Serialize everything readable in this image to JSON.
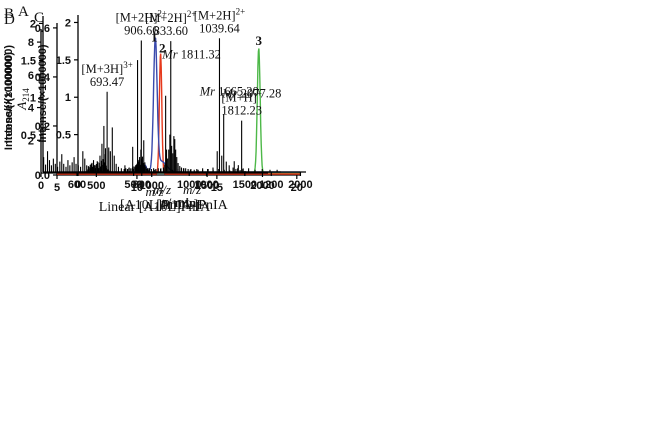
{
  "figure": {
    "background": "#ffffff",
    "axis_color": "#000000"
  },
  "chart_data": [
    {
      "panel": "A",
      "type": "line",
      "description": "RP-HPLC chromatogram with three labeled peaks",
      "xlabel": {
        "italic": "t",
        "base": " / min"
      },
      "ylabel": {
        "italic": "A",
        "sub": "214"
      },
      "xlim": [
        5,
        20.2
      ],
      "ylim": [
        0,
        0.62
      ],
      "xticks": {
        "values": [
          5,
          10,
          15,
          20
        ],
        "labels": [
          "5",
          "10",
          "15",
          "20"
        ]
      },
      "yticks": {
        "values": [
          0,
          0.2,
          0.4,
          0.6
        ],
        "labels": [
          "0.0",
          "0.2",
          "0.4",
          "0.6"
        ]
      },
      "grid": false,
      "series": [
        {
          "name": "trace-3-green",
          "color": "#4db848",
          "baseline": 0.008,
          "peaks": [
            [
              17.62,
              0.51,
              0.09
            ]
          ]
        },
        {
          "name": "trace-2-red",
          "color": "#e6391c",
          "baseline": 0.004,
          "peaks": [
            [
              11.48,
              0.495,
              0.075
            ]
          ]
        },
        {
          "name": "trace-1-blue",
          "color": "#3a4aad",
          "baseline": 0.012,
          "peaks": [
            [
              10.5,
              0.028,
              0.09
            ],
            [
              11.15,
              0.525,
              0.11
            ],
            [
              11.5,
              0.045,
              0.33
            ]
          ]
        }
      ],
      "annotations": [
        {
          "kind": "free",
          "x": 11.08,
          "y": 0.545,
          "color": "#3a4aad",
          "lines": [
            {
              "base": "1"
            }
          ]
        },
        {
          "kind": "free",
          "x": 11.58,
          "y": 0.5,
          "color": "#e6391c",
          "lines": [
            {
              "base": "2"
            }
          ]
        },
        {
          "kind": "free",
          "x": 17.62,
          "y": 0.53,
          "color": "#4db848",
          "lines": [
            {
              "base": "3"
            }
          ]
        }
      ],
      "caption": ""
    },
    {
      "panel": "B",
      "type": "stick",
      "description": "ESI-MS spectrum of linear peptide",
      "xlabel": {
        "italic": "m/z"
      },
      "ylabel": {
        "base": "Intense/(×1000000)"
      },
      "xlim": [
        0,
        2050
      ],
      "ylim": [
        0,
        8.8
      ],
      "xticks": {
        "values": [
          0,
          500,
          1000,
          1500,
          2000
        ],
        "labels": [
          "0",
          "500",
          "1000",
          "1500",
          "2000"
        ]
      },
      "yticks": {
        "values": [
          2,
          4,
          6,
          8
        ],
        "labels": [
          "2",
          "4",
          "6",
          "8"
        ]
      },
      "grid": false,
      "peaks": [
        [
          408,
          0.1
        ],
        [
          418,
          0.22
        ],
        [
          428,
          0.42
        ],
        [
          436,
          0.28
        ],
        [
          445,
          0.5
        ],
        [
          452,
          0.32
        ],
        [
          460,
          0.62
        ],
        [
          468,
          0.38
        ],
        [
          476,
          0.28
        ],
        [
          484,
          0.48
        ],
        [
          492,
          0.3
        ],
        [
          500,
          0.55
        ],
        [
          508,
          0.72
        ],
        [
          515,
          0.45
        ],
        [
          522,
          0.3
        ],
        [
          530,
          0.62
        ],
        [
          538,
          0.4
        ],
        [
          546,
          0.75
        ],
        [
          554,
          0.5
        ],
        [
          562,
          0.85
        ],
        [
          570,
          1.15
        ],
        [
          578,
          0.65
        ],
        [
          586,
          0.45
        ],
        [
          594,
          0.3
        ],
        [
          604,
          0.22
        ],
        [
          614,
          0.16
        ],
        [
          626,
          0.12
        ],
        [
          640,
          0.1
        ],
        [
          655,
          0.08
        ],
        [
          672,
          0.1
        ],
        [
          690,
          0.07
        ],
        [
          710,
          0.09
        ],
        [
          730,
          0.07
        ],
        [
          752,
          0.1
        ],
        [
          775,
          0.08
        ],
        [
          798,
          0.12
        ],
        [
          812,
          0.25
        ],
        [
          828,
          1.6
        ],
        [
          840,
          0.4
        ],
        [
          852,
          0.35
        ],
        [
          862,
          0.5
        ],
        [
          872,
          6.9
        ],
        [
          884,
          0.8
        ],
        [
          895,
          0.5
        ],
        [
          906,
          8.1
        ],
        [
          916,
          1.0
        ],
        [
          928,
          2.0
        ],
        [
          938,
          0.65
        ],
        [
          948,
          0.4
        ],
        [
          958,
          0.25
        ],
        [
          970,
          0.15
        ],
        [
          985,
          0.1
        ],
        [
          1002,
          0.08
        ],
        [
          1030,
          0.06
        ],
        [
          1060,
          0.05
        ],
        [
          1100,
          0.05
        ],
        [
          1150,
          0.04
        ],
        [
          1198,
          0.1
        ],
        [
          1232,
          0.07
        ],
        [
          1268,
          0.13
        ],
        [
          1300,
          0.07
        ],
        [
          1350,
          0.04
        ],
        [
          1420,
          0.04
        ],
        [
          1490,
          0.03
        ],
        [
          1560,
          0.03
        ],
        [
          1630,
          0.04
        ],
        [
          1690,
          0.05
        ],
        [
          1718,
          0.1
        ],
        [
          1745,
          0.72
        ],
        [
          1760,
          0.25
        ],
        [
          1782,
          0.48
        ],
        [
          1798,
          0.18
        ],
        [
          1812,
          3.2
        ],
        [
          1826,
          0.28
        ],
        [
          1842,
          0.12
        ],
        [
          1860,
          0.06
        ]
      ],
      "annotations": [
        {
          "kind": "peak",
          "x": 906,
          "peak_y": 8.1,
          "lines": [
            {
              "base": "[M+2H]",
              "sup": "2+"
            },
            {
              "base": "906.66"
            }
          ]
        },
        {
          "kind": "free",
          "x": 1360,
          "y": 7.0,
          "lines": [
            {
              "italic": "Mr",
              "base": " 1811.32"
            }
          ]
        },
        {
          "kind": "peak",
          "x": 1812,
          "peak_y": 3.2,
          "lines": [
            {
              "base": "[M+H]",
              "sup": "+"
            },
            {
              "base": "1812.23"
            }
          ]
        }
      ],
      "caption": "Linear [A10L]PnIA"
    },
    {
      "panel": "C",
      "type": "stick",
      "description": "ESI-MS spectrum of oxidized peptide",
      "xlabel": {
        "italic": "m/z"
      },
      "ylabel": {
        "base": "Intense/(×1000000)"
      },
      "xlim": [
        0,
        2050
      ],
      "ylim": [
        0,
        2.1
      ],
      "xticks": {
        "values": [
          0,
          500,
          1000,
          1500,
          2000
        ],
        "labels": [
          "0",
          "500",
          "1000",
          "1500",
          "2000"
        ]
      },
      "yticks": {
        "values": [
          0.5,
          1,
          1.5,
          2
        ],
        "labels": [
          "0.5",
          "1",
          "1.5",
          "2"
        ]
      },
      "grid": false,
      "peaks": [
        [
          415,
          0.04
        ],
        [
          430,
          0.05
        ],
        [
          445,
          0.04
        ],
        [
          460,
          0.06
        ],
        [
          475,
          0.05
        ],
        [
          490,
          0.06
        ],
        [
          505,
          0.07
        ],
        [
          518,
          0.09
        ],
        [
          530,
          0.11
        ],
        [
          542,
          0.14
        ],
        [
          554,
          0.2
        ],
        [
          565,
          0.3
        ],
        [
          574,
          0.18
        ],
        [
          584,
          0.12
        ],
        [
          596,
          0.09
        ],
        [
          610,
          0.07
        ],
        [
          625,
          0.05
        ],
        [
          642,
          0.05
        ],
        [
          660,
          0.04
        ],
        [
          680,
          0.05
        ],
        [
          700,
          0.04
        ],
        [
          722,
          0.05
        ],
        [
          745,
          0.05
        ],
        [
          768,
          0.06
        ],
        [
          780,
          0.1
        ],
        [
          788,
          1.02
        ],
        [
          796,
          0.3
        ],
        [
          806,
          0.18
        ],
        [
          816,
          0.3
        ],
        [
          826,
          0.5
        ],
        [
          834,
          1.75
        ],
        [
          842,
          0.35
        ],
        [
          852,
          0.25
        ],
        [
          862,
          0.48
        ],
        [
          870,
          0.44
        ],
        [
          878,
          0.3
        ],
        [
          888,
          0.2
        ],
        [
          900,
          0.12
        ],
        [
          915,
          0.08
        ],
        [
          930,
          0.06
        ],
        [
          948,
          0.05
        ],
        [
          968,
          0.05
        ],
        [
          990,
          0.04
        ],
        [
          1015,
          0.04
        ],
        [
          1045,
          0.03
        ],
        [
          1080,
          0.03
        ],
        [
          1120,
          0.03
        ],
        [
          1165,
          0.04
        ],
        [
          1215,
          0.03
        ],
        [
          1265,
          0.04
        ],
        [
          1315,
          0.03
        ],
        [
          1365,
          0.02
        ]
      ],
      "annotations": [
        {
          "kind": "peak",
          "x": 834,
          "peak_y": 1.75,
          "lines": [
            {
              "base": "[M+2H]",
              "sup": "2+"
            },
            {
              "base": "833.60"
            }
          ]
        },
        {
          "kind": "free",
          "x": 1360,
          "y": 1.02,
          "lines": [
            {
              "italic": "Mr",
              "base": " 1665.20"
            }
          ]
        }
      ],
      "caption": "[A10L]PnIA"
    },
    {
      "panel": "D",
      "type": "stick",
      "description": "ESI-MS spectrum of fluorescent conjugate",
      "xlabel": {
        "italic": "m/z"
      },
      "ylabel": {
        "base": "Intense/(×1000000)"
      },
      "xlim": [
        495,
        1230
      ],
      "ylim": [
        0,
        2.1
      ],
      "xticks": {
        "values": [
          600,
          800,
          1000,
          1200
        ],
        "labels": [
          "600",
          "800",
          "1000",
          "1200"
        ]
      },
      "yticks": {
        "values": [
          0.5,
          1,
          1.5,
          2
        ],
        "labels": [
          "0.5",
          "1",
          "1.5",
          "2"
        ]
      },
      "grid": false,
      "peaks": [
        [
          497,
          0.2
        ],
        [
          503,
          0.1
        ],
        [
          509,
          0.28
        ],
        [
          515,
          0.16
        ],
        [
          521,
          0.09
        ],
        [
          527,
          0.18
        ],
        [
          533,
          0.11
        ],
        [
          540,
          0.07
        ],
        [
          547,
          0.14
        ],
        [
          553,
          0.24
        ],
        [
          559,
          0.11
        ],
        [
          566,
          0.07
        ],
        [
          572,
          0.16
        ],
        [
          578,
          0.09
        ],
        [
          585,
          0.13
        ],
        [
          591,
          0.2
        ],
        [
          597,
          0.11
        ],
        [
          604,
          0.09
        ],
        [
          611,
          0.07
        ],
        [
          618,
          0.28
        ],
        [
          624,
          0.18
        ],
        [
          630,
          0.09
        ],
        [
          637,
          0.07
        ],
        [
          644,
          0.11
        ],
        [
          651,
          0.16
        ],
        [
          658,
          0.09
        ],
        [
          665,
          0.13
        ],
        [
          671,
          0.22
        ],
        [
          677,
          0.38
        ],
        [
          683,
          0.62
        ],
        [
          688,
          0.32
        ],
        [
          693,
          1.08
        ],
        [
          698,
          0.33
        ],
        [
          703,
          0.28
        ],
        [
          709,
          0.6
        ],
        [
          715,
          0.22
        ],
        [
          721,
          0.11
        ],
        [
          728,
          0.07
        ],
        [
          737,
          0.05
        ],
        [
          748,
          0.09
        ],
        [
          760,
          0.05
        ],
        [
          774,
          0.04
        ],
        [
          790,
          0.05
        ],
        [
          806,
          0.04
        ],
        [
          822,
          0.05
        ],
        [
          840,
          0.03
        ],
        [
          858,
          0.04
        ],
        [
          876,
          0.05
        ],
        [
          894,
          0.03
        ],
        [
          912,
          0.04
        ],
        [
          930,
          0.05
        ],
        [
          950,
          0.03
        ],
        [
          970,
          0.04
        ],
        [
          988,
          0.05
        ],
        [
          1005,
          0.04
        ],
        [
          1020,
          0.06
        ],
        [
          1033,
          0.28
        ],
        [
          1040,
          1.8
        ],
        [
          1047,
          0.22
        ],
        [
          1053,
          0.78
        ],
        [
          1061,
          0.14
        ],
        [
          1070,
          0.09
        ],
        [
          1082,
          0.06
        ],
        [
          1096,
          0.05
        ],
        [
          1112,
          0.04
        ],
        [
          1130,
          0.05
        ],
        [
          1150,
          0.03
        ],
        [
          1172,
          0.04
        ],
        [
          1196,
          0.03
        ],
        [
          1218,
          0.03
        ]
      ],
      "annotations": [
        {
          "kind": "peak",
          "x": 693,
          "peak_y": 1.08,
          "lines": [
            {
              "base": "[M+3H]",
              "sup": "3+"
            },
            {
              "base": "693.47"
            }
          ]
        },
        {
          "kind": "peak",
          "x": 1040,
          "peak_y": 1.8,
          "lines": [
            {
              "base": "[M+2H]",
              "sup": "2+"
            },
            {
              "base": "1039.64"
            }
          ]
        },
        {
          "kind": "free",
          "x": 1140,
          "y": 1.0,
          "lines": [
            {
              "italic": "Mr",
              "base": " 2077.28"
            }
          ]
        }
      ],
      "caption": "[A10L]PnIA-F"
    }
  ]
}
